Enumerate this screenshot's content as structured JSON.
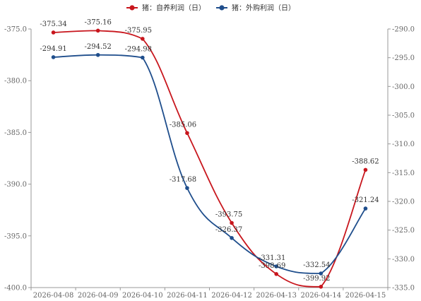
{
  "chart_data": {
    "type": "line",
    "categories": [
      "2026-04-08",
      "2026-04-09",
      "2026-04-10",
      "2026-04-11",
      "2026-04-12",
      "2026-04-13",
      "2026-04-14",
      "2026-04-15"
    ],
    "series": [
      {
        "name": "猪：自养利润（日）",
        "axis": "left",
        "color": "#c8161d",
        "values": [
          -375.34,
          -375.16,
          -375.95,
          -385.06,
          -393.75,
          -398.69,
          -399.92,
          -388.62
        ],
        "labels": [
          "-375.34",
          "-375.16",
          "-375.95",
          "-385.06",
          "-393.75",
          "-398.69",
          "-399.92",
          "-388.62"
        ]
      },
      {
        "name": "猪：外购利润（日）",
        "axis": "right",
        "color": "#1f4e8c",
        "values": [
          -294.91,
          -294.52,
          -294.98,
          -317.68,
          -326.37,
          -331.31,
          -332.54,
          -321.24
        ],
        "labels": [
          "-294.91",
          "-294.52",
          "-294.98",
          "-317.68",
          "-326.37",
          "-331.31",
          "-332.54",
          "-321.24"
        ]
      }
    ],
    "y_left": {
      "range": [
        -400,
        -375
      ],
      "ticks": [
        "-375.0",
        "-380.0",
        "-385.0",
        "-390.0",
        "-395.0",
        "-400.0"
      ]
    },
    "y_right": {
      "range": [
        -335,
        -290
      ],
      "ticks": [
        "-290.0",
        "-295.0",
        "-300.0",
        "-305.0",
        "-310.0",
        "-315.0",
        "-320.0",
        "-325.0",
        "-330.0",
        "-335.0"
      ]
    },
    "legend_position": "top-center",
    "grid": false
  }
}
